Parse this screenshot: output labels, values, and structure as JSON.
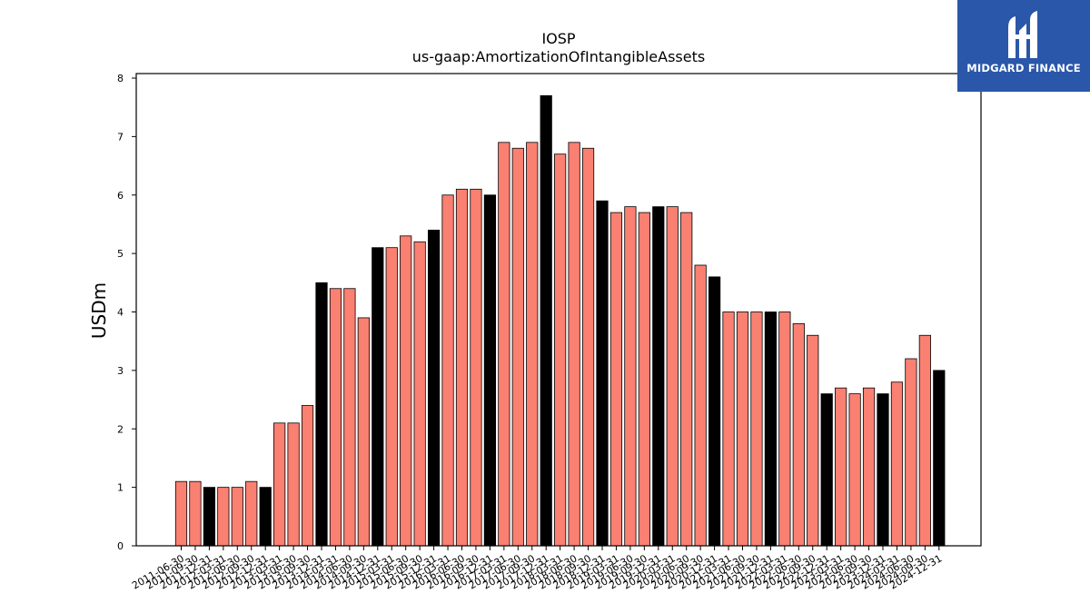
{
  "chart_data": {
    "type": "bar",
    "title": "IOSP",
    "subtitle": "us-gaap:AmortizationOfIntangibleAssets",
    "xlabel": "",
    "ylabel": "USDm",
    "ylim": [
      0,
      8
    ],
    "yticks": [
      "0",
      "1",
      "2",
      "3",
      "4",
      "5",
      "6",
      "7",
      "8"
    ],
    "grid": false,
    "colors": {
      "quarter": "#fa8072",
      "year_end": "#000000"
    },
    "categories": [
      "2011-06-30",
      "2011-09-30",
      "2011-12-31",
      "2012-03-31",
      "2012-06-30",
      "2012-09-30",
      "2012-12-31",
      "2013-03-31",
      "2013-06-30",
      "2013-09-30",
      "2013-12-31",
      "2014-03-31",
      "2014-06-30",
      "2014-09-30",
      "2014-12-31",
      "2015-03-31",
      "2015-06-30",
      "2015-09-30",
      "2015-12-31",
      "2016-03-31",
      "2016-06-30",
      "2016-09-30",
      "2016-12-31",
      "2017-03-31",
      "2017-06-30",
      "2017-09-30",
      "2017-12-31",
      "2018-03-31",
      "2018-06-30",
      "2018-09-30",
      "2018-12-31",
      "2019-03-31",
      "2019-06-30",
      "2019-09-30",
      "2019-12-31",
      "2020-03-31",
      "2020-06-30",
      "2020-09-30",
      "2020-12-31",
      "2021-03-31",
      "2021-06-30",
      "2021-09-30",
      "2021-12-31",
      "2022-03-31",
      "2022-06-30",
      "2022-09-30",
      "2022-12-31",
      "2023-03-31",
      "2023-06-30",
      "2023-09-30",
      "2023-12-31",
      "2024-03-31",
      "2024-06-30",
      "2024-09-30",
      "2024-12-31"
    ],
    "values": [
      1.1,
      1.1,
      1.0,
      1.0,
      1.0,
      1.1,
      1.0,
      2.1,
      2.1,
      2.4,
      4.5,
      4.4,
      4.4,
      3.9,
      5.1,
      5.1,
      5.3,
      5.2,
      5.4,
      6.0,
      6.1,
      6.1,
      6.0,
      6.9,
      6.8,
      6.9,
      7.7,
      6.7,
      6.9,
      6.8,
      5.9,
      5.7,
      5.8,
      5.7,
      5.8,
      5.8,
      5.7,
      4.8,
      4.6,
      4.0,
      4.0,
      4.0,
      4.0,
      4.0,
      3.8,
      3.6,
      2.6,
      2.7,
      2.6,
      2.7,
      2.6,
      2.8,
      3.2,
      3.6,
      3.0
    ]
  },
  "logo": {
    "text": "MIDGARD FINANCE",
    "color": "#2a57aa"
  }
}
